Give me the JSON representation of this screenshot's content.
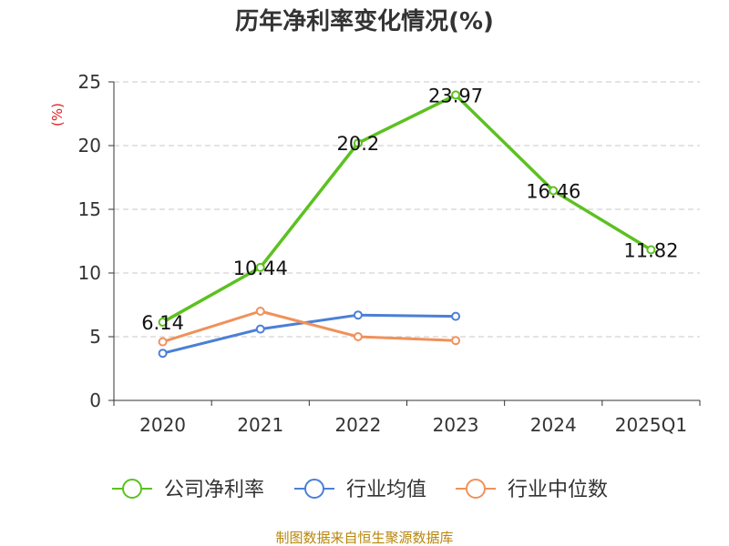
{
  "chart_data": {
    "type": "line",
    "title": "历年净利率变化情况(%)",
    "ylabel": "(%)",
    "xlabel": "",
    "categories": [
      "2020",
      "2021",
      "2022",
      "2023",
      "2024",
      "2025Q1"
    ],
    "ylim": [
      0,
      25
    ],
    "yticks": [
      0,
      5,
      10,
      15,
      20,
      25
    ],
    "grid": true,
    "legend_position": "bottom",
    "series": [
      {
        "name": "公司净利率",
        "values": [
          6.14,
          10.44,
          20.2,
          23.97,
          16.46,
          11.82
        ],
        "color": "#5cc120",
        "labels": [
          "6.14",
          "10.44",
          "20.2",
          "23.97",
          "16.46",
          "11.82"
        ]
      },
      {
        "name": "行业均值",
        "values": [
          3.7,
          5.6,
          6.7,
          6.6,
          null,
          null
        ],
        "color": "#4b7fd6"
      },
      {
        "name": "行业中位数",
        "values": [
          4.6,
          7.0,
          5.0,
          4.7,
          null,
          null
        ],
        "color": "#f0915a"
      }
    ]
  },
  "footer": {
    "source": "制图数据来自恒生聚源数据库"
  }
}
